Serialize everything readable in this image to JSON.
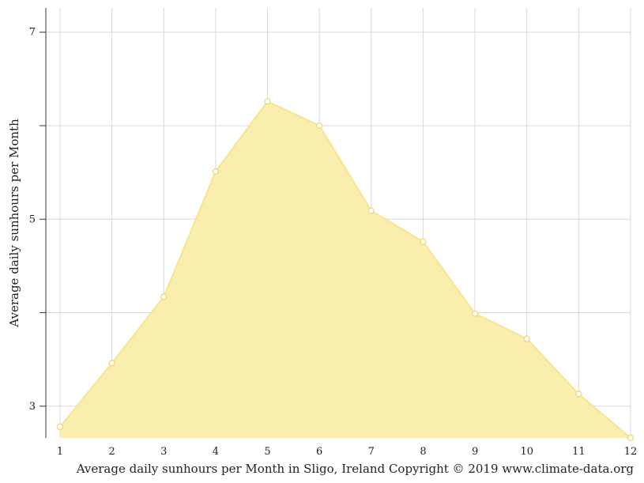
{
  "chart_data": {
    "type": "area",
    "x": [
      1,
      2,
      3,
      4,
      5,
      6,
      7,
      8,
      9,
      10,
      11,
      12
    ],
    "values": [
      2.78,
      3.46,
      4.17,
      5.51,
      6.26,
      6.0,
      5.09,
      4.76,
      3.99,
      3.72,
      3.13,
      2.66
    ],
    "xlabel": "",
    "ylabel": "Average daily sunhours per Month",
    "caption": "Average daily sunhours per Month in Sligo, Ireland Copyright © 2019 www.climate-data.org",
    "xticks": [
      "1",
      "2",
      "3",
      "4",
      "5",
      "6",
      "7",
      "8",
      "9",
      "10",
      "11",
      "12"
    ],
    "yticks": [
      {
        "value": 3,
        "label": "3"
      },
      {
        "value": 4,
        "label": ""
      },
      {
        "value": 5,
        "label": "5"
      },
      {
        "value": 6,
        "label": ""
      },
      {
        "value": 7,
        "label": "7"
      }
    ],
    "xlim": [
      1,
      12
    ],
    "ylim": [
      2.66,
      7.26
    ],
    "grid": true,
    "colors": {
      "fill": "#faeeae",
      "line": "#f8e48a",
      "marker_fill": "#ffffff",
      "marker_stroke": "#f0d774",
      "grid": "#d8d8d8",
      "axis": "#333333"
    }
  }
}
